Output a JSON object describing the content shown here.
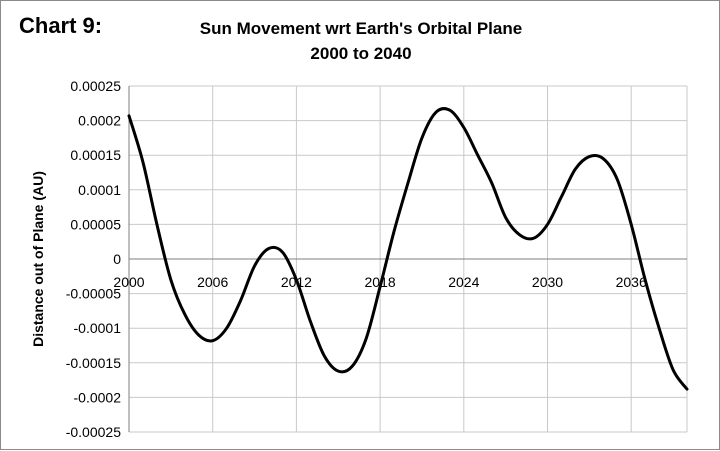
{
  "chart_label": "Chart 9:",
  "chart_data": {
    "type": "line",
    "title": [
      "Sun Movement wrt Earth's Orbital Plane",
      "2000 to 2040"
    ],
    "xlabel": "",
    "ylabel": "Distance out of Plane (AU)",
    "xlim": [
      2000,
      2040
    ],
    "ylim": [
      -0.00025,
      0.00025
    ],
    "x_ticks": [
      2000,
      2006,
      2012,
      2018,
      2024,
      2030,
      2036
    ],
    "x_tick_labels": [
      "2000",
      "2006",
      "2012",
      "2018",
      "2024",
      "2030",
      "2036"
    ],
    "y_ticks": [
      0.00025,
      0.0002,
      0.00015,
      0.0001,
      5e-05,
      0,
      -5e-05,
      -0.0001,
      -0.00015,
      -0.0002,
      -0.00025
    ],
    "y_tick_labels": [
      "0.00025",
      "0.0002",
      "0.00015",
      "0.0001",
      "0.00005",
      "0",
      "-0.00005",
      "-0.0001",
      "-0.00015",
      "-0.0002",
      "-0.00025"
    ],
    "grid": true,
    "series": [
      {
        "name": "Sun Movement",
        "color": "#000000",
        "x": [
          2000,
          2001,
          2002,
          2003,
          2004,
          2005,
          2006,
          2007,
          2008,
          2009,
          2010,
          2011,
          2012,
          2013,
          2014,
          2015,
          2016,
          2017,
          2018,
          2019,
          2020,
          2021,
          2022,
          2023,
          2024,
          2025,
          2026,
          2027,
          2028,
          2029,
          2030,
          2031,
          2032,
          2033,
          2034,
          2035,
          2036,
          2037,
          2038,
          2039,
          2040
        ],
        "y": [
          0.000207,
          0.00014,
          5e-05,
          -3e-05,
          -8e-05,
          -0.00011,
          -0.000118,
          -0.0001,
          -6e-05,
          -1e-05,
          1.5e-05,
          1e-05,
          -3e-05,
          -9e-05,
          -0.00014,
          -0.000162,
          -0.000155,
          -0.000115,
          -4e-05,
          4e-05,
          0.00011,
          0.000175,
          0.000212,
          0.000215,
          0.00019,
          0.00015,
          0.00011,
          6e-05,
          3.5e-05,
          3e-05,
          5e-05,
          9e-05,
          0.00013,
          0.000148,
          0.000145,
          0.000115,
          5e-05,
          -3e-05,
          -0.0001,
          -0.00016,
          -0.000188
        ]
      }
    ]
  }
}
